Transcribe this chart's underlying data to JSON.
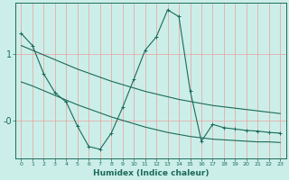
{
  "xlabel": "Humidex (Indice chaleur)",
  "bg_color": "#cceee8",
  "line_color": "#1a6b5a",
  "grid_color": "#e8a0a0",
  "xlim": [
    -0.5,
    23.5
  ],
  "ylim": [
    -0.55,
    1.75
  ],
  "yticks": [
    1.0,
    0.0
  ],
  "ytick_labels": [
    "1",
    "-0"
  ],
  "x": [
    0,
    1,
    2,
    3,
    4,
    5,
    6,
    7,
    8,
    9,
    10,
    11,
    12,
    13,
    14,
    15,
    16,
    17,
    18,
    19,
    20,
    21,
    22,
    23
  ],
  "y_zigzag": [
    1.3,
    1.12,
    0.7,
    0.42,
    0.28,
    -0.08,
    -0.38,
    -0.42,
    -0.18,
    0.2,
    0.62,
    1.05,
    1.25,
    1.65,
    1.55,
    0.45,
    -0.3,
    -0.05,
    -0.1,
    -0.12,
    -0.14,
    -0.15,
    -0.17,
    -0.18
  ],
  "y_upper": [
    1.12,
    1.05,
    0.98,
    0.91,
    0.84,
    0.77,
    0.71,
    0.65,
    0.59,
    0.54,
    0.49,
    0.44,
    0.4,
    0.36,
    0.32,
    0.29,
    0.26,
    0.23,
    0.21,
    0.19,
    0.17,
    0.15,
    0.13,
    0.11
  ],
  "y_lower": [
    0.58,
    0.52,
    0.45,
    0.38,
    0.31,
    0.24,
    0.18,
    0.12,
    0.06,
    0.01,
    -0.04,
    -0.09,
    -0.13,
    -0.17,
    -0.2,
    -0.23,
    -0.25,
    -0.27,
    -0.28,
    -0.29,
    -0.3,
    -0.31,
    -0.31,
    -0.32
  ]
}
